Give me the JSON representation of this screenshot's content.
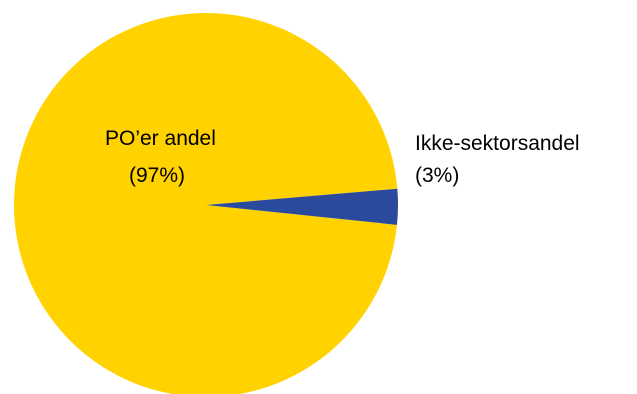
{
  "chart_data": {
    "type": "pie",
    "title": "",
    "slices": [
      {
        "label": "PO’er andel",
        "percent_label": "(97%)",
        "value": 97,
        "color": "#FFD200"
      },
      {
        "label": "Ikke-sektorsandel",
        "percent_label": "(3%)",
        "value": 3,
        "color": "#2A4A9E"
      }
    ]
  }
}
